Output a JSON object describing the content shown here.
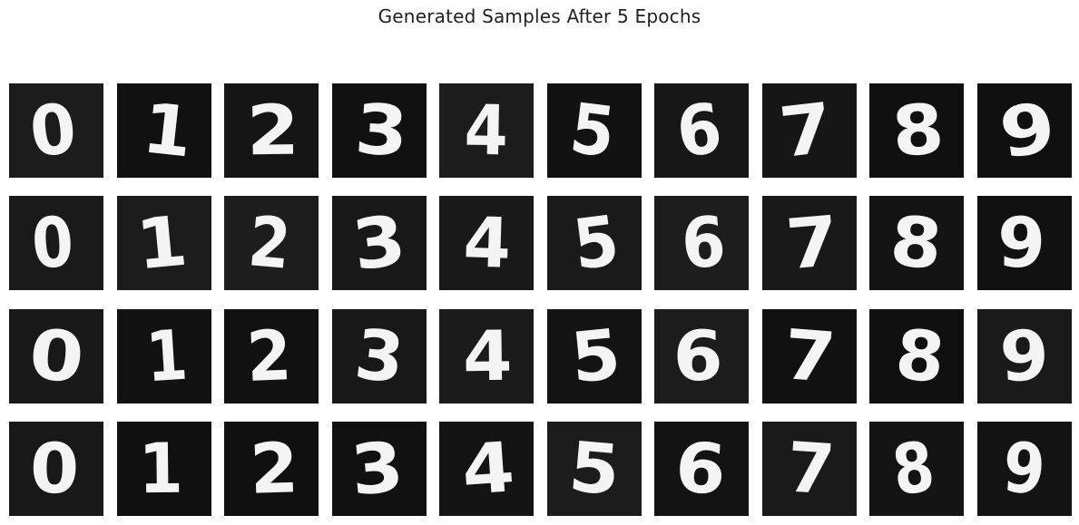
{
  "title": "Generated Samples After 5 Epochs",
  "colors": {
    "background": "#ffffff",
    "tile_background": "#141414",
    "digit_stroke": "#f4f4f4",
    "title_text": "#222222"
  },
  "samples": [
    [
      "0",
      "1",
      "2",
      "3",
      "4",
      "5",
      "6",
      "7",
      "8",
      "9"
    ],
    [
      "0",
      "1",
      "2",
      "3",
      "4",
      "5",
      "6",
      "7",
      "8",
      "9"
    ],
    [
      "0",
      "1",
      "2",
      "3",
      "4",
      "5",
      "6",
      "7",
      "8",
      "9"
    ],
    [
      "0",
      "1",
      "2",
      "3",
      "4",
      "5",
      "6",
      "7",
      "8",
      "9"
    ]
  ]
}
